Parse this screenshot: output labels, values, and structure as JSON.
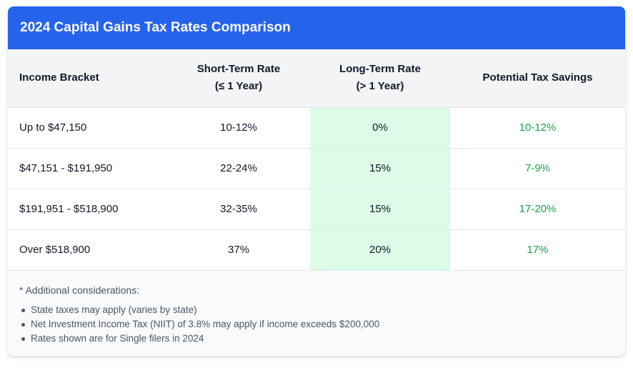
{
  "title": "2024 Capital Gains Tax Rates Comparison",
  "table": {
    "headers": {
      "bracket": "Income Bracket",
      "short_line1": "Short-Term Rate",
      "short_line2": "(≤ 1 Year)",
      "long_line1": "Long-Term Rate",
      "long_line2": "(> 1 Year)",
      "savings": "Potential Tax Savings"
    },
    "rows": [
      {
        "bracket": "Up to $47,150",
        "short": "10-12%",
        "long": "0%",
        "savings": "10-12%"
      },
      {
        "bracket": "$47,151 - $191,950",
        "short": "22-24%",
        "long": "15%",
        "savings": "7-9%"
      },
      {
        "bracket": "$191,951 - $518,900",
        "short": "32-35%",
        "long": "15%",
        "savings": "17-20%"
      },
      {
        "bracket": "Over $518,900",
        "short": "37%",
        "long": "20%",
        "savings": "17%"
      }
    ]
  },
  "notes": {
    "intro": "* Additional considerations:",
    "items": [
      "State taxes may apply (varies by state)",
      "Net Investment Income Tax (NIIT) of 3.8% may apply if income exceeds $200,000",
      "Rates shown are for Single filers in 2024"
    ]
  },
  "colors": {
    "header_bg": "#2563eb",
    "long_term_bg": "#dcfce7",
    "savings_text": "#16a34a"
  }
}
